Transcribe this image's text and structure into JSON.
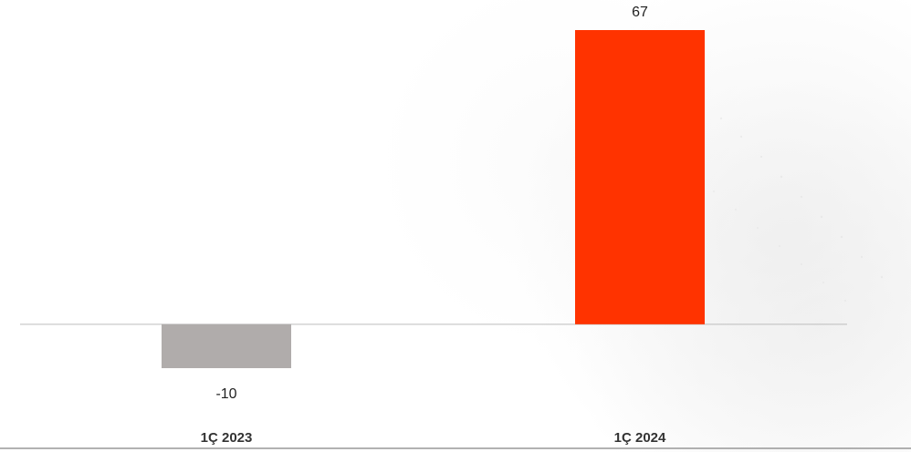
{
  "chart_data": {
    "type": "bar",
    "categories": [
      "1Ç 2023",
      "1Ç 2024"
    ],
    "values": [
      -10,
      67
    ],
    "colors": [
      "#b0acab",
      "#ff3300"
    ],
    "data_labels": [
      "-10",
      "67"
    ],
    "ylim": [
      -10,
      67
    ],
    "grid": false,
    "legend": "none",
    "title": "",
    "xlabel": "",
    "ylabel": ""
  }
}
